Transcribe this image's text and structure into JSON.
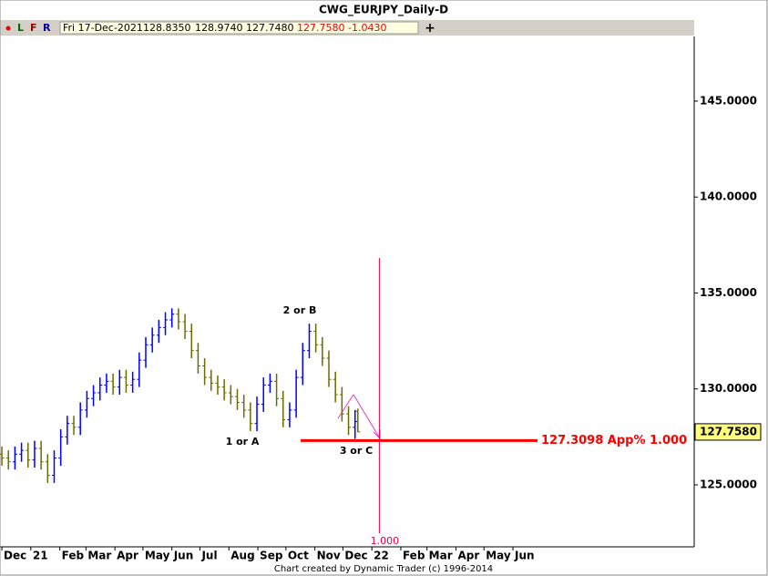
{
  "chart_data": {
    "type": "ohlc",
    "title": "CWG_EURJPY_Daily-D",
    "header": {
      "flags": [
        "L",
        "F",
        "R"
      ],
      "date": "Fri 17-Dec-2021",
      "open": "128.8350",
      "high": "128.9740",
      "low": "127.7480",
      "close": "127.7580",
      "change": "-1.0430"
    },
    "series": [
      {
        "up_color": "#0000ff",
        "down_color": "#6b6b00",
        "x": [
          0,
          7,
          14,
          21,
          28,
          35,
          42,
          49,
          56,
          63,
          70,
          77,
          84,
          91,
          98,
          105,
          112,
          119,
          126,
          133,
          140,
          147,
          154,
          161,
          168,
          175,
          182,
          189,
          196,
          203,
          210,
          217,
          224,
          231,
          238,
          245,
          252,
          259,
          266,
          273,
          280,
          287,
          294,
          301,
          308,
          315,
          322,
          329,
          336,
          343,
          350,
          357,
          364,
          371,
          378,
          381
        ],
        "open": [
          126.6,
          126.4,
          126.2,
          126.6,
          126.8,
          126.3,
          126.9,
          126.2,
          125.5,
          126.4,
          127.5,
          128.2,
          128.0,
          128.9,
          129.5,
          129.8,
          130.2,
          130.4,
          130.1,
          130.6,
          130.2,
          130.5,
          131.5,
          132.3,
          132.8,
          133.2,
          133.6,
          133.9,
          133.5,
          133.0,
          132.0,
          131.2,
          130.6,
          130.3,
          130.1,
          129.8,
          129.6,
          129.3,
          128.9,
          128.2,
          129.2,
          130.2,
          130.4,
          129.5,
          128.4,
          128.9,
          130.6,
          132.0,
          133.0,
          132.3,
          131.6,
          130.5,
          129.7,
          128.7,
          128.0,
          128.835
        ],
        "high": [
          127.0,
          126.8,
          127.0,
          127.2,
          127.2,
          127.3,
          127.3,
          126.6,
          126.8,
          127.9,
          128.6,
          128.6,
          129.3,
          129.9,
          130.2,
          130.6,
          130.8,
          130.8,
          131.0,
          131.0,
          130.9,
          131.9,
          132.7,
          133.2,
          133.6,
          134.0,
          134.2,
          134.2,
          133.9,
          133.4,
          132.4,
          131.6,
          131.0,
          130.7,
          130.5,
          130.2,
          130.0,
          129.7,
          129.3,
          129.6,
          130.6,
          130.8,
          130.8,
          129.9,
          129.3,
          131.0,
          132.4,
          133.4,
          133.4,
          132.7,
          132.0,
          130.9,
          130.1,
          129.1,
          128.9,
          128.974
        ],
        "low": [
          126.0,
          125.8,
          125.8,
          126.2,
          125.9,
          125.9,
          125.8,
          125.1,
          125.1,
          126.0,
          127.1,
          127.6,
          127.6,
          128.5,
          129.1,
          129.4,
          129.8,
          129.7,
          129.7,
          129.8,
          129.8,
          130.1,
          131.1,
          131.9,
          132.4,
          132.8,
          133.2,
          133.1,
          132.6,
          131.6,
          130.8,
          130.2,
          129.9,
          129.7,
          129.4,
          129.2,
          128.9,
          128.5,
          127.8,
          127.8,
          128.8,
          129.8,
          129.1,
          128.0,
          128.0,
          128.5,
          130.2,
          131.6,
          131.9,
          131.2,
          130.1,
          129.3,
          128.3,
          127.6,
          127.4,
          127.748
        ],
        "close": [
          126.4,
          126.2,
          126.6,
          126.8,
          126.3,
          126.9,
          126.2,
          125.5,
          126.4,
          127.5,
          128.2,
          128.0,
          128.9,
          129.5,
          129.8,
          130.2,
          130.4,
          130.1,
          130.6,
          130.2,
          130.5,
          131.5,
          132.3,
          132.8,
          133.2,
          133.6,
          133.9,
          133.5,
          133.0,
          132.0,
          131.2,
          130.6,
          130.3,
          130.1,
          129.8,
          129.6,
          129.3,
          128.9,
          128.2,
          129.2,
          130.2,
          130.4,
          129.5,
          128.4,
          128.9,
          130.6,
          132.0,
          133.0,
          132.3,
          131.6,
          130.5,
          129.7,
          128.7,
          128.0,
          128.3,
          127.758
        ]
      }
    ],
    "xlim": [
      -2,
      741
    ],
    "xticks": [
      {
        "value": 0,
        "label": "Dec"
      },
      {
        "value": 31,
        "label": "21"
      },
      {
        "value": 62,
        "label": "Feb"
      },
      {
        "value": 90,
        "label": "Mar"
      },
      {
        "value": 121,
        "label": "Apr"
      },
      {
        "value": 151,
        "label": "May"
      },
      {
        "value": 182,
        "label": "Jun"
      },
      {
        "value": 212,
        "label": "Jul"
      },
      {
        "value": 243,
        "label": "Aug"
      },
      {
        "value": 274,
        "label": "Sep"
      },
      {
        "value": 304,
        "label": "Oct"
      },
      {
        "value": 335,
        "label": "Nov"
      },
      {
        "value": 365,
        "label": "Dec"
      },
      {
        "value": 396,
        "label": "22"
      },
      {
        "value": 427,
        "label": "Feb"
      },
      {
        "value": 455,
        "label": "Mar"
      },
      {
        "value": 486,
        "label": "Apr"
      },
      {
        "value": 516,
        "label": "May"
      },
      {
        "value": 547,
        "label": "Jun"
      }
    ],
    "ylim": [
      121.77,
      148.37
    ],
    "yticks": [
      {
        "value": 125,
        "label": "125.0000"
      },
      {
        "value": 130,
        "label": "130.0000"
      },
      {
        "value": 135,
        "label": "135.0000"
      },
      {
        "value": 140,
        "label": "140.0000"
      },
      {
        "value": 145,
        "label": "145.0000"
      }
    ],
    "last_price": {
      "value": 127.758,
      "label": "127.7580"
    },
    "level": {
      "value": 127.3098,
      "label": "127.3098 App% 1.000",
      "color": "#ff0000"
    },
    "time_line": {
      "x": 404,
      "label": "1.000",
      "color": "#e0004a"
    },
    "annotations": [
      "1 or A",
      "2 or B",
      "3 or C"
    ],
    "credit": "Chart created by Dynamic Trader  (c) 1996-2014"
  }
}
